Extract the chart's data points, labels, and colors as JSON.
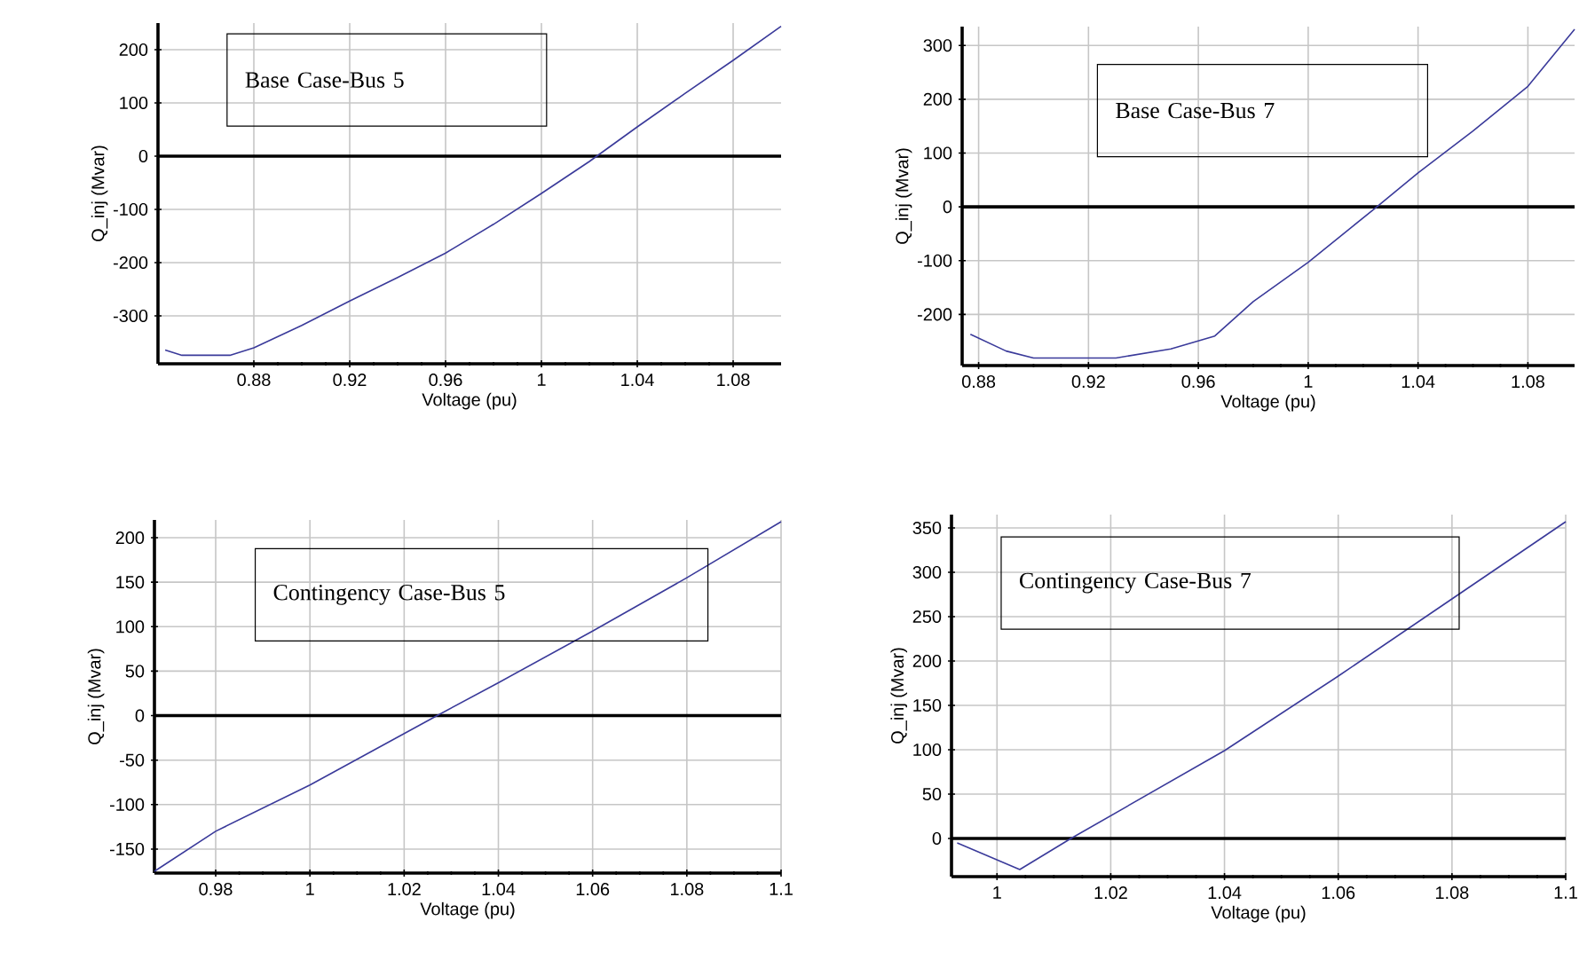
{
  "chart_data": [
    {
      "type": "line",
      "title": "Base Case-Bus 5",
      "xlabel": "Voltage (pu)",
      "ylabel": "Q_inj (Mvar)",
      "xlim": [
        0.84,
        1.1
      ],
      "ylim": [
        -390,
        250
      ],
      "xticks": [
        0.88,
        0.92,
        0.96,
        1,
        1.04,
        1.08
      ],
      "yticks": [
        -300,
        -200,
        -100,
        0,
        100,
        200
      ],
      "grid": true,
      "ref_lines": [
        {
          "axis": "y",
          "value": 0,
          "color": "#000000"
        }
      ],
      "series": [
        {
          "color": "#3a3a9a",
          "x": [
            0.843,
            0.85,
            0.87,
            0.88,
            0.9,
            0.92,
            0.94,
            0.96,
            0.98,
            1.0,
            1.02,
            1.04,
            1.06,
            1.08,
            1.1
          ],
          "values": [
            -364,
            -374,
            -374,
            -360,
            -318,
            -272,
            -228,
            -182,
            -128,
            -70,
            -10,
            55,
            118,
            180,
            244
          ]
        }
      ]
    },
    {
      "type": "line",
      "title": "Base Case-Bus 7",
      "xlabel": "Voltage (pu)",
      "ylabel": "Q_inj (Mvar)",
      "xlim": [
        0.874,
        1.097
      ],
      "ylim": [
        -295,
        335
      ],
      "xticks": [
        0.88,
        0.92,
        0.96,
        1,
        1.04,
        1.08
      ],
      "yticks": [
        -200,
        -100,
        0,
        100,
        200,
        300
      ],
      "grid": true,
      "ref_lines": [
        {
          "axis": "y",
          "value": 0,
          "color": "#000000"
        }
      ],
      "series": [
        {
          "color": "#3a3a9a",
          "x": [
            0.877,
            0.89,
            0.9,
            0.93,
            0.95,
            0.966,
            0.98,
            1.0,
            1.025,
            1.04,
            1.06,
            1.08,
            1.097
          ],
          "values": [
            -237,
            -268,
            -281,
            -281,
            -264,
            -240,
            -176,
            -103,
            0,
            63,
            141,
            224,
            330
          ]
        }
      ]
    },
    {
      "type": "line",
      "title": "Contingency Case-Bus 5",
      "xlabel": "Voltage (pu)",
      "ylabel": "Q_inj (Mvar)",
      "xlim": [
        0.967,
        1.1
      ],
      "ylim": [
        -177,
        220
      ],
      "xticks": [
        0.98,
        1,
        1.02,
        1.04,
        1.06,
        1.08,
        1.1
      ],
      "yticks": [
        -150,
        -100,
        -50,
        0,
        50,
        100,
        150,
        200
      ],
      "grid": true,
      "ref_lines": [
        {
          "axis": "y",
          "value": 0,
          "color": "#000000"
        }
      ],
      "series": [
        {
          "color": "#3a3a9a",
          "x": [
            0.967,
            0.98,
            1.0,
            1.027,
            1.04,
            1.06,
            1.08,
            1.1
          ],
          "values": [
            -175,
            -130,
            -78,
            0,
            37,
            95,
            155,
            218
          ]
        }
      ]
    },
    {
      "type": "line",
      "title": "Contingency Case-Bus 7",
      "xlabel": "Voltage (pu)",
      "ylabel": "Q_inj (Mvar)",
      "xlim": [
        0.992,
        1.1
      ],
      "ylim": [
        -43,
        365
      ],
      "xticks": [
        1,
        1.02,
        1.04,
        1.06,
        1.08,
        1.1
      ],
      "yticks": [
        0,
        50,
        100,
        150,
        200,
        250,
        300,
        350
      ],
      "grid": true,
      "ref_lines": [
        {
          "axis": "y",
          "value": 0,
          "color": "#000000"
        }
      ],
      "series": [
        {
          "color": "#3a3a9a",
          "x": [
            0.993,
            1.004,
            1.013,
            1.04,
            1.06,
            1.08,
            1.1
          ],
          "values": [
            -5,
            -35,
            0,
            99,
            183,
            270,
            357
          ]
        }
      ]
    }
  ]
}
